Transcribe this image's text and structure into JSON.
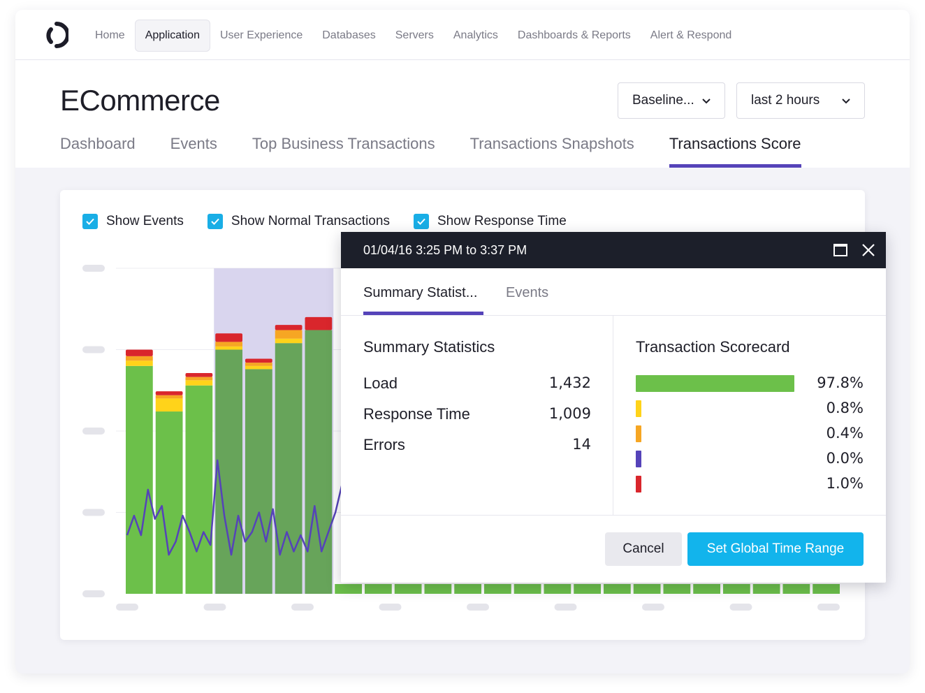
{
  "nav": {
    "items": [
      {
        "label": "Home",
        "active": false
      },
      {
        "label": "Application",
        "active": true
      },
      {
        "label": "User Experience",
        "active": false
      },
      {
        "label": "Databases",
        "active": false
      },
      {
        "label": "Servers",
        "active": false
      },
      {
        "label": "Analytics",
        "active": false
      },
      {
        "label": "Dashboards & Reports",
        "active": false
      },
      {
        "label": "Alert & Respond",
        "active": false
      }
    ]
  },
  "header": {
    "title": "ECommerce",
    "baseline_dropdown": "Baseline...",
    "range_dropdown": "last 2 hours"
  },
  "tabs": [
    {
      "label": "Dashboard",
      "active": false
    },
    {
      "label": "Events",
      "active": false
    },
    {
      "label": "Top Business Transactions",
      "active": false
    },
    {
      "label": "Transactions Snapshots",
      "active": false
    },
    {
      "label": "Transactions Score",
      "active": true
    }
  ],
  "filters": [
    {
      "label": "Show Events",
      "checked": true
    },
    {
      "label": "Show Normal Transactions",
      "checked": true
    },
    {
      "label": "Show Response Time",
      "checked": true
    }
  ],
  "colors": {
    "accent": "#5543b9",
    "primary_button": "#12b4ec",
    "normal": "#6cc04a",
    "slow": "#ffd31a",
    "very_slow": "#f6a623",
    "stall": "#5543b9",
    "error": "#d9262c",
    "line": "#5543b9"
  },
  "chart_data": {
    "type": "bar",
    "stacked": true,
    "series": [
      {
        "values": [
          0.7,
          0.56,
          0.64,
          0.75,
          0.69,
          0.77,
          0.81,
          0.03,
          0.03,
          0.03,
          0.03,
          0.03,
          0.03,
          0.03,
          0.03,
          0.03,
          0.03,
          0.03,
          0.03,
          0.03,
          0.03,
          0.03,
          0.03,
          0.03
        ]
      },
      {
        "values": [
          0.016,
          0.04,
          0.016,
          0.01,
          0.01,
          0.014,
          0.0,
          0,
          0,
          0,
          0,
          0,
          0,
          0,
          0,
          0,
          0,
          0,
          0,
          0,
          0,
          0,
          0,
          0
        ]
      },
      {
        "values": [
          0.014,
          0.01,
          0.01,
          0.014,
          0.01,
          0.026,
          0.0,
          0,
          0,
          0,
          0,
          0,
          0,
          0,
          0,
          0,
          0,
          0,
          0,
          0,
          0,
          0,
          0,
          0
        ]
      },
      {
        "values": [
          0.02,
          0.012,
          0.012,
          0.026,
          0.012,
          0.016,
          0.04,
          0,
          0,
          0,
          0,
          0,
          0,
          0,
          0,
          0,
          0,
          0,
          0,
          0,
          0,
          0,
          0,
          0
        ]
      }
    ],
    "line": {
      "values": [
        0.18,
        0.24,
        0.18,
        0.32,
        0.23,
        0.27,
        0.12,
        0.16,
        0.24,
        0.19,
        0.13,
        0.19,
        0.15,
        0.41,
        0.24,
        0.12,
        0.24,
        0.16,
        0.19,
        0.25,
        0.16,
        0.26,
        0.12,
        0.19,
        0.13,
        0.18,
        0.13,
        0.27,
        0.13,
        0.19,
        0.25,
        0.34
      ]
    },
    "highlight": {
      "from_bar": 3,
      "to_bar": 6
    },
    "ylim": [
      0,
      1
    ],
    "grid": true
  },
  "popup": {
    "title": "01/04/16 3:25 PM to 3:37 PM",
    "tabs": [
      {
        "label": "Summary Statist...",
        "active": true
      },
      {
        "label": "Events",
        "active": false
      }
    ],
    "summary": {
      "title": "Summary Statistics",
      "rows": [
        {
          "label": "Load",
          "value": "1,432"
        },
        {
          "label": "Response Time",
          "value": "1,009"
        },
        {
          "label": "Errors",
          "value": "14"
        }
      ]
    },
    "scorecard": {
      "title": "Transaction Scorecard",
      "rows": [
        {
          "value": "97.8%",
          "fraction": 0.978,
          "color": "#6cc04a"
        },
        {
          "value": "0.8%",
          "fraction": 0.008,
          "color": "#ffd31a"
        },
        {
          "value": "0.4%",
          "fraction": 0.004,
          "color": "#f6a623"
        },
        {
          "value": "0.0%",
          "fraction": 0.0,
          "color": "#5543b9"
        },
        {
          "value": "1.0%",
          "fraction": 0.01,
          "color": "#d9262c"
        }
      ]
    },
    "cancel_label": "Cancel",
    "set_label": "Set Global Time Range"
  }
}
